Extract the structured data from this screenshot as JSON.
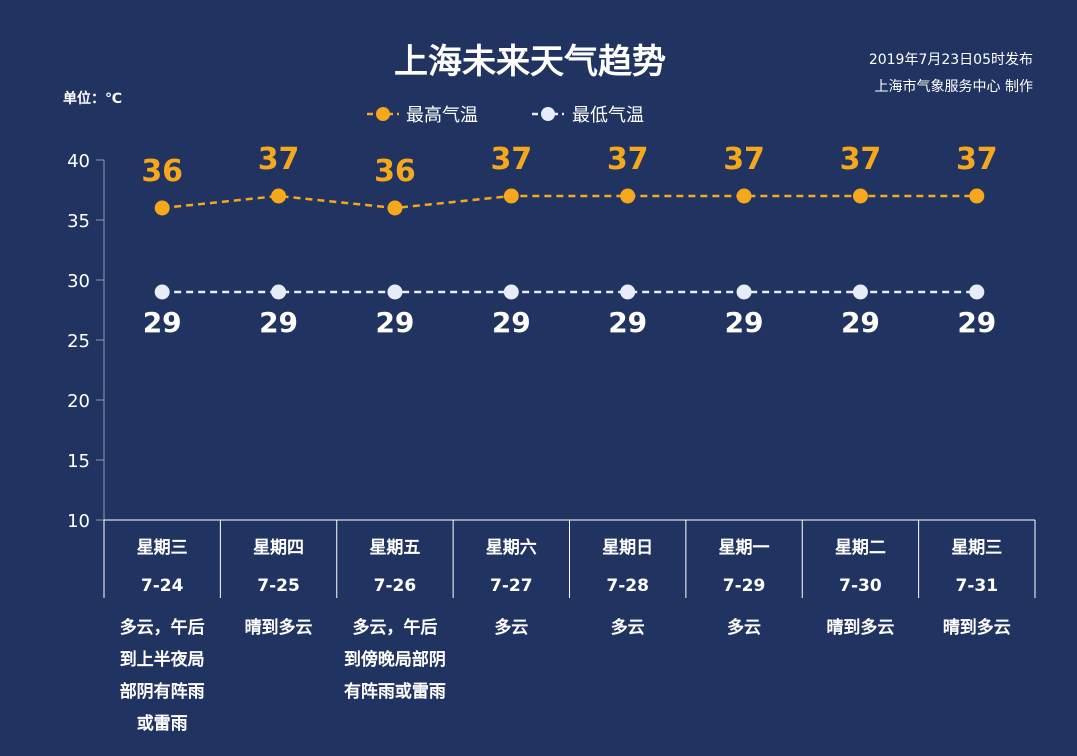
{
  "header": {
    "title": "上海未来天气趋势",
    "release": "2019年7月23日05时发布",
    "producer": "上海市气象服务中心  制作",
    "unit": "单位：℃"
  },
  "colors": {
    "background": "#213461",
    "high": "#f5a81c",
    "low": "#e6edf9",
    "axis": "#8d9bbd"
  },
  "chart_data": {
    "type": "line",
    "title": "上海未来天气趋势",
    "ylabel": "单位：℃",
    "ylim": [
      10,
      40
    ],
    "yticks": [
      "10",
      "15",
      "20",
      "25",
      "30",
      "35",
      "40"
    ],
    "grid": false,
    "legend_position": "top-center",
    "categories": [
      "7-24",
      "7-25",
      "7-26",
      "7-27",
      "7-28",
      "7-29",
      "7-30",
      "7-31"
    ],
    "weekdays": [
      "星期三",
      "星期四",
      "星期五",
      "星期六",
      "星期日",
      "星期一",
      "星期二",
      "星期三"
    ],
    "series": [
      {
        "name": "最高气温",
        "values": [
          36,
          37,
          36,
          37,
          37,
          37,
          37,
          37
        ],
        "color": "#f5a81c"
      },
      {
        "name": "最低气温",
        "values": [
          29,
          29,
          29,
          29,
          29,
          29,
          29,
          29
        ],
        "color": "#e6edf9"
      }
    ],
    "conditions": [
      [
        "多云，午后",
        "到上半夜局",
        "部阴有阵雨",
        "或雷雨"
      ],
      [
        "晴到多云"
      ],
      [
        "多云，午后",
        "到傍晚局部阴",
        "有阵雨或雷雨"
      ],
      [
        "多云"
      ],
      [
        "多云"
      ],
      [
        "多云"
      ],
      [
        "晴到多云"
      ],
      [
        "晴到多云"
      ]
    ]
  }
}
